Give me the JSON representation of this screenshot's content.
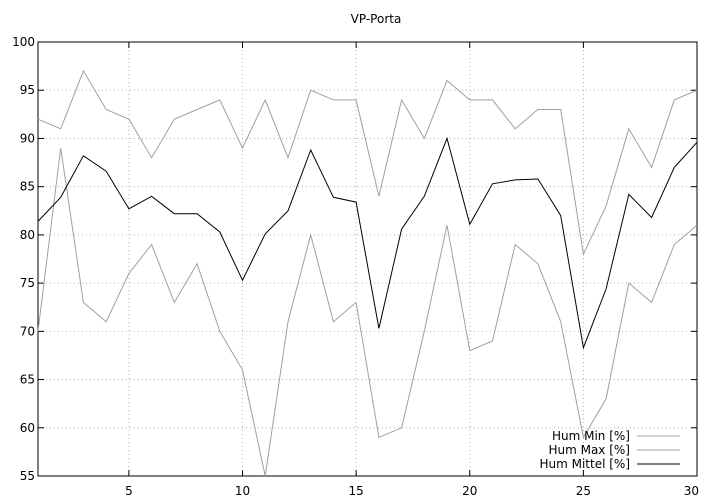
{
  "chart_data": {
    "type": "line",
    "title": "VP-Porta",
    "xlabel": "",
    "ylabel": "",
    "xlim": [
      1,
      30
    ],
    "ylim": [
      55,
      100
    ],
    "xticks": [
      5,
      10,
      15,
      20,
      25,
      30
    ],
    "yticks": [
      55,
      60,
      65,
      70,
      75,
      80,
      85,
      90,
      95,
      100
    ],
    "grid": true,
    "legend_position": "bottom-right",
    "x": [
      1,
      2,
      3,
      4,
      5,
      6,
      7,
      8,
      9,
      10,
      11,
      12,
      13,
      14,
      15,
      16,
      17,
      18,
      19,
      20,
      21,
      22,
      23,
      24,
      25,
      26,
      27,
      28,
      29,
      30
    ],
    "series": [
      {
        "name": "Hum Min [%]",
        "color": "#a0a0a0",
        "values": [
          70,
          89,
          73,
          71,
          76,
          79,
          73,
          77,
          70,
          66,
          55,
          71,
          80,
          71,
          73,
          59,
          60,
          70,
          81,
          68,
          69,
          79,
          77,
          71,
          59,
          63,
          75,
          73,
          79,
          81
        ]
      },
      {
        "name": "Hum Max [%]",
        "color": "#a0a0a0",
        "values": [
          92,
          91,
          97,
          93,
          92,
          88,
          92,
          93,
          94,
          89,
          94,
          88,
          95,
          94,
          94,
          84,
          94,
          90,
          96,
          94,
          94,
          91,
          93,
          93,
          78,
          83,
          91,
          87,
          94,
          95
        ]
      },
      {
        "name": "Hum Mittel [%]",
        "color": "#000000",
        "values": [
          81.4,
          83.9,
          88.2,
          86.6,
          82.7,
          84.0,
          82.2,
          82.2,
          80.3,
          75.3,
          80.1,
          82.5,
          88.8,
          83.9,
          83.4,
          70.3,
          80.6,
          84.0,
          90.0,
          81.1,
          85.3,
          85.7,
          85.8,
          82.0,
          68.3,
          74.4,
          84.2,
          81.8,
          87.0,
          89.6
        ]
      }
    ]
  }
}
